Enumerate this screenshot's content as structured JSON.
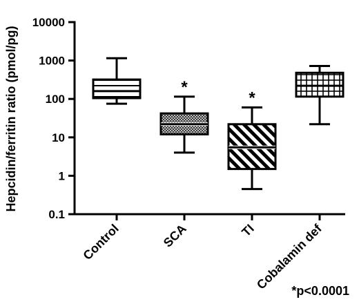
{
  "chart_data": {
    "type": "boxplot",
    "ylabel": "Hepcidin/ferritin ratio (pmol/pg)",
    "yscale": "log",
    "ylim": [
      0.1,
      10000
    ],
    "yticks": [
      {
        "value": 0.1,
        "label": "0.1"
      },
      {
        "value": 1,
        "label": "1"
      },
      {
        "value": 10,
        "label": "10"
      },
      {
        "value": 100,
        "label": "100"
      },
      {
        "value": 1000,
        "label": "1000"
      },
      {
        "value": 10000,
        "label": "10000"
      }
    ],
    "categories": [
      "Control",
      "SCA",
      "TI",
      "Cobalamin def"
    ],
    "boxes": [
      {
        "category": "Control",
        "min": 75,
        "q1": 105,
        "median": 160,
        "q3": 320,
        "max": 1150,
        "pattern": "horizontal-lines",
        "marker": ""
      },
      {
        "category": "SCA",
        "min": 4,
        "q1": 12,
        "median": 22,
        "q3": 42,
        "max": 115,
        "pattern": "crosshatch",
        "marker": "*"
      },
      {
        "category": "TI",
        "min": 0.45,
        "q1": 1.5,
        "median": 5.5,
        "q3": 22,
        "max": 60,
        "pattern": "diagonal-lines",
        "marker": "*"
      },
      {
        "category": "Cobalamin def",
        "min": 22,
        "q1": 115,
        "median": 220,
        "q3": 480,
        "max": 720,
        "pattern": "grid",
        "marker": ""
      }
    ],
    "annotation": "*p<0.0001",
    "grid": false,
    "legend": "none"
  }
}
